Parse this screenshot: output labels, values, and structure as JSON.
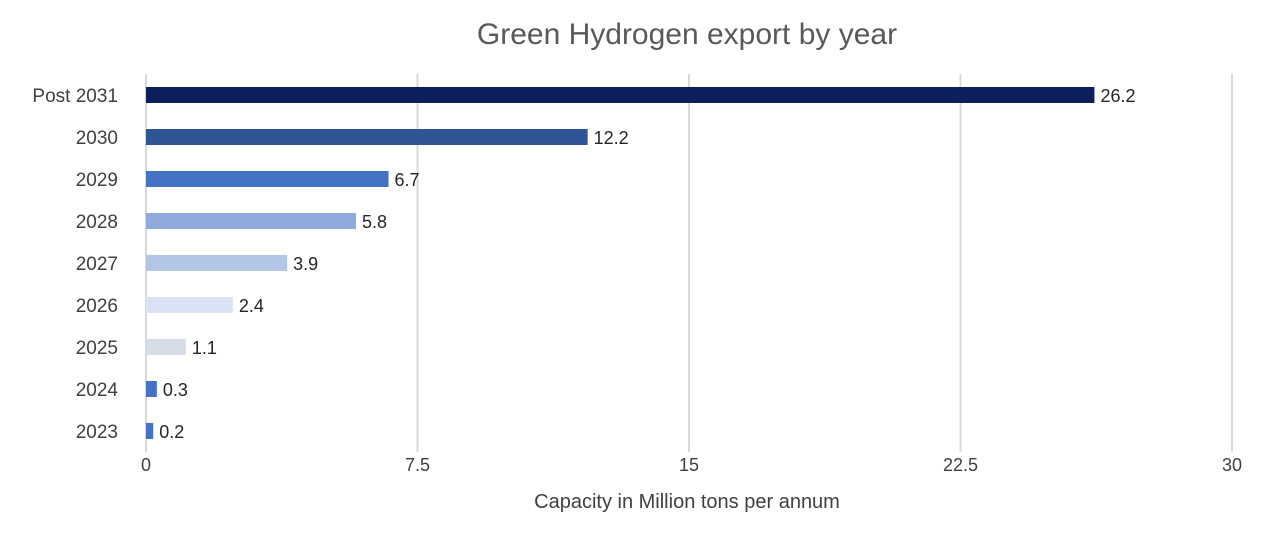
{
  "chart_data": {
    "type": "bar",
    "orientation": "horizontal",
    "title": "Green Hydrogen export by year",
    "xlabel": "Capacity in Million tons per annum",
    "ylabel": "",
    "categories": [
      "2023",
      "2024",
      "2025",
      "2026",
      "2027",
      "2028",
      "2029",
      "2030",
      "Post 2031"
    ],
    "values": [
      0.2,
      0.3,
      1.1,
      2.4,
      3.9,
      5.8,
      6.7,
      12.2,
      26.2
    ],
    "data_labels": [
      "0.2",
      "0.3",
      "1.1",
      "2.4",
      "3.9",
      "5.8",
      "6.7",
      "12.2",
      "26.2"
    ],
    "bar_colors": [
      "#4472c4",
      "#4472c4",
      "#d6dce5",
      "#dae3f3",
      "#b4c6e7",
      "#8faadc",
      "#4472c4",
      "#2f5597",
      "#0d1f5c"
    ],
    "xlim": [
      0,
      30
    ],
    "xticks": [
      0,
      7.5,
      15,
      22.5,
      30
    ],
    "xtick_labels": [
      "0",
      "7.5",
      "15",
      "22.5",
      "30"
    ],
    "grid": true,
    "legend": "none"
  }
}
